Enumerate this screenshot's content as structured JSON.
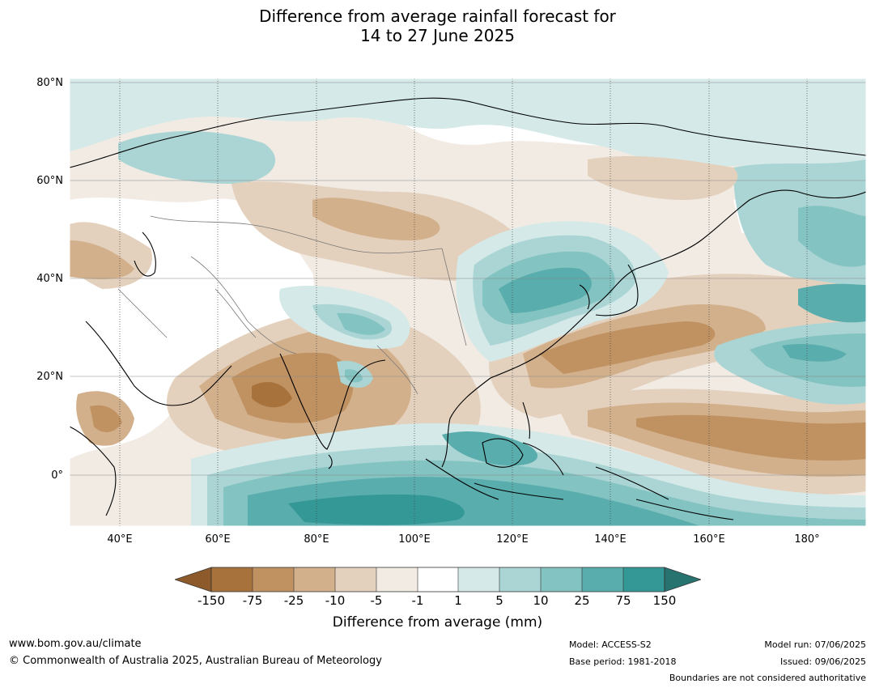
{
  "title": {
    "line1": "Difference from average rainfall forecast for",
    "line2": "14 to 27 June 2025"
  },
  "map": {
    "lat_labels": [
      "80°N",
      "60°N",
      "40°N",
      "20°N",
      "0°"
    ],
    "lon_labels": [
      "40°E",
      "60°E",
      "80°E",
      "100°E",
      "120°E",
      "140°E",
      "160°E",
      "180°"
    ],
    "colors": {
      "brown_dark": "#8c5a2b",
      "brown_1": "#a8723c",
      "brown_2": "#c09262",
      "brown_3": "#d3b08c",
      "brown_4": "#e4d1bd",
      "brown_5": "#f1ebe4",
      "white": "#ffffff",
      "teal_1": "#d4e9e8",
      "teal_2": "#abd5d4",
      "teal_3": "#83c3c1",
      "teal_4": "#5aadad",
      "teal_5": "#339896",
      "teal_dark": "#27736f"
    }
  },
  "legend": {
    "ticks": [
      "-150",
      "-75",
      "-25",
      "-10",
      "-5",
      "-1",
      "1",
      "5",
      "10",
      "25",
      "75",
      "150"
    ],
    "title": "Difference from average (mm)"
  },
  "footer": {
    "website": "www.bom.gov.au/climate",
    "copyright": "© Commonwealth of Australia 2025, Australian Bureau of Meteorology",
    "model": "Model: ACCESS-S2",
    "base_period": "Base period: 1981-2018",
    "model_run": "Model run: 07/06/2025",
    "issued": "Issued: 09/06/2025",
    "disclaimer": "Boundaries are not considered authoritative"
  }
}
